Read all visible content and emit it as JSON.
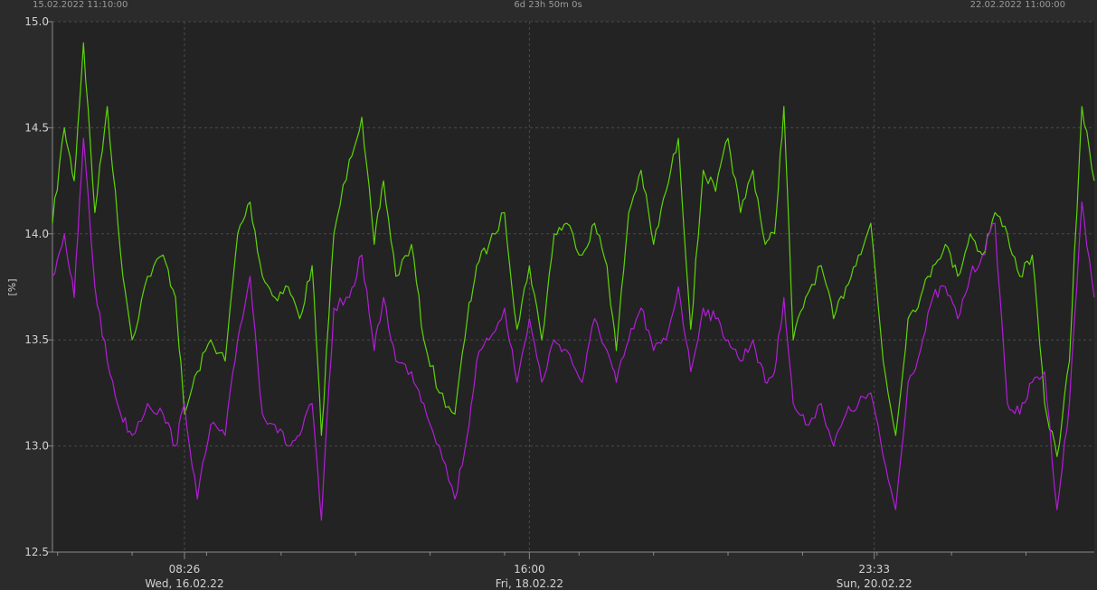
{
  "header": {
    "left": "15.02.2022 11:10:00",
    "center": "6d 23h 50m 0s",
    "right": "22.02.2022 11:00:00"
  },
  "colors": {
    "background": "#232323",
    "grid": "#4a4a4a",
    "axis": "#8a8a8a",
    "series_green": "#5fd40a",
    "series_purple": "#b01ed6"
  },
  "chart_data": {
    "type": "line",
    "ylabel": "[%]",
    "ylim": [
      12.5,
      15.0
    ],
    "yticks": [
      "12.5",
      "13.0",
      "13.5",
      "14.0",
      "14.5",
      "15.0"
    ],
    "xrange": [
      "2022-02-15 11:10",
      "2022-02-22 11:00"
    ],
    "xticks": [
      {
        "x": "2022-02-16 08:26",
        "time": "08:26",
        "date": "Wed, 16.02.22"
      },
      {
        "x": "2022-02-18 16:00",
        "time": "16:00",
        "date": "Fri, 18.02.22"
      },
      {
        "x": "2022-02-20 23:33",
        "time": "23:33",
        "date": "Sun, 20.02.22"
      }
    ],
    "x": [
      "2022-02-15 11:10",
      "2022-02-15 13:05",
      "2022-02-15 14:40",
      "2022-02-15 16:10",
      "2022-02-15 18:00",
      "2022-02-15 20:00",
      "2022-02-15 22:10",
      "2022-02-16 00:00",
      "2022-02-16 02:30",
      "2022-02-16 05:00",
      "2022-02-16 07:00",
      "2022-02-16 08:26",
      "2022-02-16 10:30",
      "2022-02-16 12:40",
      "2022-02-16 15:00",
      "2022-02-16 17:00",
      "2022-02-16 19:00",
      "2022-02-16 21:00",
      "2022-02-16 23:00",
      "2022-02-17 01:10",
      "2022-02-17 03:00",
      "2022-02-17 05:00",
      "2022-02-17 06:30",
      "2022-02-17 08:30",
      "2022-02-17 11:00",
      "2022-02-17 13:00",
      "2022-02-17 15:00",
      "2022-02-17 16:30",
      "2022-02-17 18:30",
      "2022-02-17 21:00",
      "2022-02-17 23:00",
      "2022-02-18 01:30",
      "2022-02-18 04:00",
      "2022-02-18 06:00",
      "2022-02-18 07:30",
      "2022-02-18 09:30",
      "2022-02-18 12:00",
      "2022-02-18 14:00",
      "2022-02-18 16:00",
      "2022-02-18 18:00",
      "2022-02-18 20:00",
      "2022-02-18 22:00",
      "2022-02-19 00:30",
      "2022-02-19 02:30",
      "2022-02-19 04:30",
      "2022-02-19 06:00",
      "2022-02-19 08:00",
      "2022-02-19 10:00",
      "2022-02-19 12:00",
      "2022-02-19 14:00",
      "2022-02-19 16:00",
      "2022-02-19 18:00",
      "2022-02-19 20:00",
      "2022-02-19 22:00",
      "2022-02-20 00:00",
      "2022-02-20 02:00",
      "2022-02-20 04:00",
      "2022-02-20 06:00",
      "2022-02-20 07:30",
      "2022-02-20 09:00",
      "2022-02-20 10:30",
      "2022-02-20 12:30",
      "2022-02-20 15:00",
      "2022-02-20 17:00",
      "2022-02-20 19:00",
      "2022-02-20 21:00",
      "2022-02-20 23:00",
      "2022-02-21 01:00",
      "2022-02-21 03:00",
      "2022-02-21 05:00",
      "2022-02-21 07:00",
      "2022-02-21 09:00",
      "2022-02-21 11:00",
      "2022-02-21 13:00",
      "2022-02-21 15:00",
      "2022-02-21 17:00",
      "2022-02-21 19:00",
      "2022-02-21 21:00",
      "2022-02-21 23:00",
      "2022-02-22 01:00",
      "2022-02-22 03:00",
      "2022-02-22 05:00",
      "2022-02-22 07:00",
      "2022-02-22 09:00",
      "2022-02-22 11:00"
    ],
    "series": [
      {
        "color": "#5fd40a",
        "values": [
          14.05,
          14.5,
          14.25,
          14.9,
          14.1,
          14.6,
          13.9,
          13.5,
          13.8,
          13.9,
          13.7,
          13.15,
          13.35,
          13.5,
          13.4,
          14.0,
          14.15,
          13.8,
          13.7,
          13.75,
          13.6,
          13.85,
          13.05,
          14.0,
          14.35,
          14.55,
          13.95,
          14.25,
          13.8,
          13.95,
          13.5,
          13.25,
          13.15,
          13.6,
          13.85,
          13.95,
          14.1,
          13.55,
          13.85,
          13.5,
          14.0,
          14.05,
          13.9,
          14.05,
          13.85,
          13.45,
          14.1,
          14.3,
          13.95,
          14.2,
          14.45,
          13.55,
          14.3,
          14.2,
          14.45,
          14.1,
          14.3,
          13.95,
          14.0,
          14.6,
          13.5,
          13.7,
          13.85,
          13.6,
          13.75,
          13.9,
          14.05,
          13.4,
          13.05,
          13.6,
          13.7,
          13.85,
          13.95,
          13.8,
          14.0,
          13.9,
          14.1,
          14.0,
          13.8,
          13.9,
          13.2,
          12.95,
          13.4,
          14.6,
          14.25
        ]
      },
      {
        "color": "#b01ed6",
        "values": [
          13.8,
          14.0,
          13.7,
          14.45,
          13.75,
          13.4,
          13.15,
          13.05,
          13.2,
          13.15,
          13.0,
          13.2,
          12.75,
          13.1,
          13.05,
          13.5,
          13.8,
          13.15,
          13.1,
          13.0,
          13.05,
          13.2,
          12.65,
          13.65,
          13.7,
          13.9,
          13.45,
          13.7,
          13.4,
          13.35,
          13.2,
          13.0,
          12.75,
          13.05,
          13.4,
          13.5,
          13.65,
          13.3,
          13.6,
          13.3,
          13.5,
          13.45,
          13.3,
          13.6,
          13.45,
          13.3,
          13.5,
          13.65,
          13.45,
          13.5,
          13.75,
          13.35,
          13.65,
          13.6,
          13.5,
          13.4,
          13.5,
          13.3,
          13.35,
          13.7,
          13.2,
          13.1,
          13.2,
          13.0,
          13.15,
          13.2,
          13.25,
          12.95,
          12.7,
          13.3,
          13.45,
          13.7,
          13.75,
          13.6,
          13.8,
          13.9,
          14.05,
          13.2,
          13.15,
          13.3,
          13.35,
          12.7,
          13.2,
          14.15,
          13.7
        ]
      }
    ]
  }
}
